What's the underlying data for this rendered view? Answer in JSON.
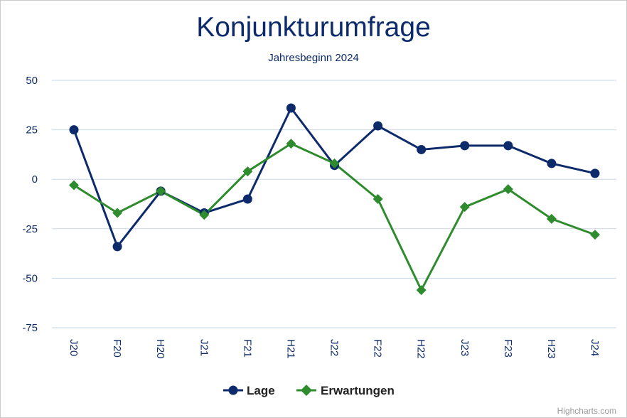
{
  "chart_data": {
    "type": "line",
    "title": "Konjunkturumfrage",
    "subtitle": "Jahresbeginn 2024",
    "categories": [
      "J20",
      "F20",
      "H20",
      "J21",
      "F21",
      "H21",
      "J22",
      "F22",
      "H22",
      "J23",
      "F23",
      "H23",
      "J24"
    ],
    "ylim": [
      -75,
      50
    ],
    "yticks": [
      "50",
      "25",
      "0",
      "-25",
      "-50",
      "-75"
    ],
    "ytick_values": [
      50,
      25,
      0,
      -25,
      -50,
      -75
    ],
    "grid": true,
    "legend_position": "bottom",
    "series": [
      {
        "name": "Lage",
        "marker": "circle",
        "color": "#0d2b6b",
        "values": [
          25,
          -34,
          -6,
          -17,
          -10,
          36,
          7,
          27,
          15,
          17,
          17,
          8,
          3
        ]
      },
      {
        "name": "Erwartungen",
        "marker": "diamond",
        "color": "#2e8b2e",
        "values": [
          -3,
          -17,
          -6,
          -18,
          4,
          18,
          8,
          -10,
          -56,
          -14,
          -5,
          -20,
          -28
        ]
      }
    ]
  },
  "credits": "Highcharts.com"
}
